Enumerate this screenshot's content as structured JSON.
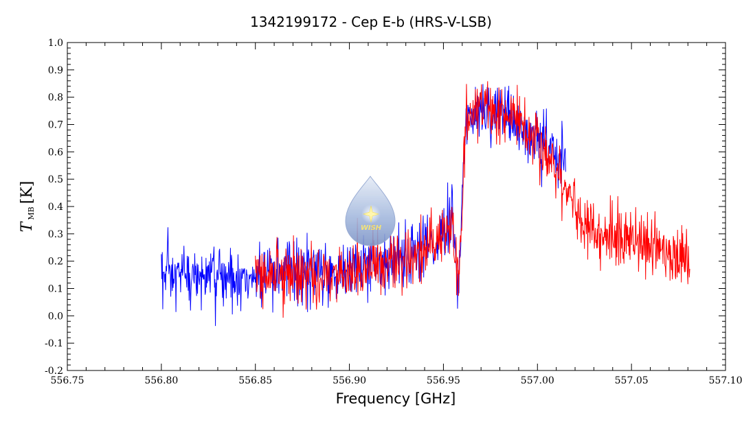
{
  "chart_data": {
    "type": "line",
    "title": "1342199172 - Cep E-b (HRS-V-LSB)",
    "xlabel": "Frequency [GHz]",
    "ylabel": {
      "main": "T",
      "subscript": "MB",
      "unit": "[K]"
    },
    "xlim": [
      556.75,
      557.1
    ],
    "ylim": [
      -0.2,
      1.0
    ],
    "x_ticks": [
      "556.75",
      "556.80",
      "556.85",
      "556.90",
      "556.95",
      "557.00",
      "557.05",
      "557.10"
    ],
    "y_ticks": [
      "-0.2",
      "-0.1",
      "0.0",
      "0.1",
      "0.2",
      "0.3",
      "0.4",
      "0.5",
      "0.6",
      "0.7",
      "0.8",
      "0.9",
      "1.0"
    ],
    "grid": false,
    "series": [
      {
        "color": "#0000ff",
        "x_range": [
          556.8,
          557.015
        ],
        "profile_x": [
          556.8,
          556.85,
          556.9,
          556.93,
          556.945,
          556.955,
          556.958,
          556.962,
          556.97,
          556.98,
          556.99,
          557.0,
          557.015
        ],
        "profile_y": [
          0.14,
          0.14,
          0.17,
          0.22,
          0.27,
          0.34,
          0.1,
          0.7,
          0.78,
          0.74,
          0.7,
          0.64,
          0.56
        ],
        "noise": 0.06
      },
      {
        "color": "#ff0000",
        "x_range": [
          556.85,
          557.081
        ],
        "profile_x": [
          556.85,
          556.88,
          556.9,
          556.93,
          556.945,
          556.955,
          556.958,
          556.962,
          556.97,
          556.98,
          556.99,
          557.0,
          557.01,
          557.02,
          557.03,
          557.05,
          557.07,
          557.08
        ],
        "profile_y": [
          0.14,
          0.15,
          0.16,
          0.2,
          0.27,
          0.33,
          0.1,
          0.7,
          0.78,
          0.74,
          0.7,
          0.64,
          0.52,
          0.4,
          0.32,
          0.27,
          0.23,
          0.2
        ],
        "noise": 0.055
      }
    ],
    "watermark": {
      "text": "WISH"
    }
  }
}
